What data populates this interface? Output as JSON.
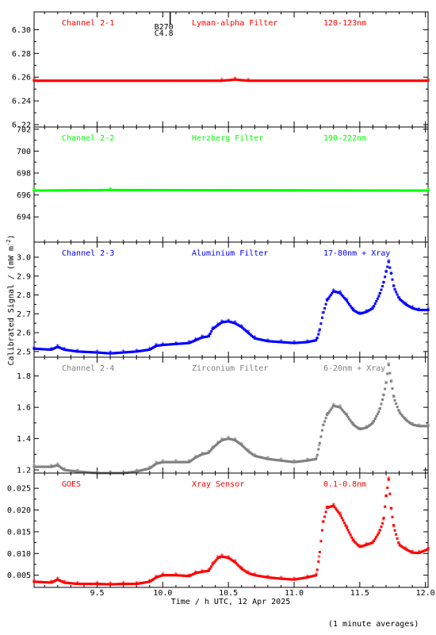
{
  "footnote": "(1 minute averages)",
  "xlabel": "Time / h UTC, 12 Apr 2025",
  "ylabel": "Calibrated Signal / (mW m",
  "ylabel_sup": "-2",
  "ylabel_end": ")",
  "x_ticks": [
    9.5,
    10.0,
    10.5,
    11.0,
    11.5,
    12.0
  ],
  "x_tick_labels": [
    "9.5",
    "10.0",
    "10.5",
    "11.0",
    "11.5",
    "12.0"
  ],
  "flare_marker": {
    "time": 10.02,
    "label_top": "B270",
    "label_bottom": "C4.8"
  },
  "chart_data": [
    {
      "type": "scatter",
      "labels": [
        "Channel 2-1",
        "Lyman-alpha Filter",
        "120-123nm"
      ],
      "color": "#ff0000",
      "xlim": [
        9.02,
        12.02
      ],
      "ylim": [
        6.218,
        6.315
      ],
      "yticks": [
        6.22,
        6.24,
        6.26,
        6.28,
        6.3
      ],
      "ytick_labels": [
        "6.22",
        "6.24",
        "6.26",
        "6.28",
        "6.30"
      ],
      "x": [
        9.02,
        10.45,
        10.55,
        10.65,
        12.02
      ],
      "y": [
        6.257,
        6.257,
        6.258,
        6.257,
        6.257
      ]
    },
    {
      "type": "scatter",
      "labels": [
        "Channel 2-2",
        "Herzberg Filter",
        "190-222nm"
      ],
      "color": "#00ff00",
      "xlim": [
        9.02,
        12.02
      ],
      "ylim": [
        691.7,
        702.2
      ],
      "yticks": [
        694,
        696,
        698,
        700,
        702
      ],
      "ytick_labels": [
        "694",
        "696",
        "698",
        "700",
        "702"
      ],
      "x": [
        9.02,
        9.6,
        12.02
      ],
      "y": [
        696.4,
        696.45,
        696.4
      ]
    },
    {
      "type": "scatter",
      "labels": [
        "Channel 2-3",
        "Aluminium Filter",
        "17-80nm + Xray"
      ],
      "color": "#0000ff",
      "xlim": [
        9.02,
        12.02
      ],
      "ylim": [
        2.47,
        3.08
      ],
      "yticks": [
        2.5,
        2.6,
        2.7,
        2.8,
        2.9,
        3.0
      ],
      "ytick_labels": [
        "2.5",
        "2.6",
        "2.7",
        "2.8",
        "2.9",
        "3.0"
      ],
      "x": [
        9.02,
        9.15,
        9.2,
        9.25,
        9.35,
        9.5,
        9.6,
        9.7,
        9.8,
        9.9,
        9.95,
        10.0,
        10.1,
        10.2,
        10.25,
        10.3,
        10.35,
        10.38,
        10.42,
        10.45,
        10.5,
        10.55,
        10.6,
        10.65,
        10.7,
        10.8,
        10.9,
        11.0,
        11.1,
        11.17,
        11.19,
        11.22,
        11.25,
        11.3,
        11.35,
        11.4,
        11.45,
        11.5,
        11.55,
        11.6,
        11.65,
        11.68,
        11.7,
        11.72,
        11.74,
        11.76,
        11.8,
        11.85,
        11.9,
        11.95,
        12.02
      ],
      "y": [
        2.515,
        2.51,
        2.525,
        2.51,
        2.5,
        2.495,
        2.49,
        2.495,
        2.5,
        2.51,
        2.53,
        2.535,
        2.54,
        2.545,
        2.56,
        2.575,
        2.58,
        2.62,
        2.64,
        2.655,
        2.66,
        2.65,
        2.63,
        2.6,
        2.57,
        2.555,
        2.55,
        2.545,
        2.55,
        2.56,
        2.6,
        2.7,
        2.77,
        2.82,
        2.81,
        2.77,
        2.72,
        2.7,
        2.71,
        2.73,
        2.8,
        2.86,
        2.92,
        2.975,
        2.91,
        2.84,
        2.78,
        2.75,
        2.73,
        2.72,
        2.72
      ]
    },
    {
      "type": "scatter",
      "labels": [
        "Channel 2-4",
        "Zirconium Filter",
        "6-20nm + Xray"
      ],
      "color": "#808080",
      "xlim": [
        9.02,
        12.02
      ],
      "ylim": [
        1.18,
        1.92
      ],
      "yticks": [
        1.2,
        1.4,
        1.6,
        1.8
      ],
      "ytick_labels": [
        "1.2",
        "1.4",
        "1.6",
        "1.8"
      ],
      "x": [
        9.02,
        9.15,
        9.2,
        9.25,
        9.35,
        9.5,
        9.6,
        9.7,
        9.8,
        9.9,
        9.95,
        10.0,
        10.1,
        10.2,
        10.25,
        10.3,
        10.35,
        10.38,
        10.42,
        10.45,
        10.5,
        10.55,
        10.6,
        10.65,
        10.7,
        10.8,
        10.9,
        11.0,
        11.1,
        11.17,
        11.19,
        11.22,
        11.25,
        11.3,
        11.35,
        11.4,
        11.45,
        11.5,
        11.55,
        11.6,
        11.65,
        11.68,
        11.7,
        11.72,
        11.74,
        11.76,
        11.8,
        11.85,
        11.9,
        11.95,
        12.02
      ],
      "y": [
        1.22,
        1.22,
        1.23,
        1.2,
        1.19,
        1.18,
        1.18,
        1.18,
        1.19,
        1.21,
        1.24,
        1.25,
        1.25,
        1.25,
        1.28,
        1.3,
        1.31,
        1.34,
        1.37,
        1.39,
        1.4,
        1.39,
        1.36,
        1.32,
        1.29,
        1.27,
        1.26,
        1.25,
        1.26,
        1.27,
        1.35,
        1.48,
        1.55,
        1.61,
        1.6,
        1.55,
        1.49,
        1.46,
        1.47,
        1.5,
        1.58,
        1.67,
        1.75,
        1.87,
        1.76,
        1.66,
        1.57,
        1.52,
        1.49,
        1.48,
        1.48
      ]
    },
    {
      "type": "scatter",
      "labels": [
        "GOES",
        "Xray Sensor",
        "0.1-0.8nm"
      ],
      "color": "#ff0000",
      "xlim": [
        9.02,
        12.02
      ],
      "ylim": [
        0.0022,
        0.0285
      ],
      "yticks": [
        0.005,
        0.01,
        0.015,
        0.02,
        0.025
      ],
      "ytick_labels": [
        "0.005",
        "0.010",
        "0.015",
        "0.020",
        "0.025"
      ],
      "x": [
        9.02,
        9.15,
        9.2,
        9.25,
        9.35,
        9.5,
        9.6,
        9.7,
        9.8,
        9.9,
        9.95,
        10.0,
        10.1,
        10.2,
        10.25,
        10.3,
        10.35,
        10.38,
        10.42,
        10.45,
        10.5,
        10.55,
        10.6,
        10.65,
        10.7,
        10.8,
        10.9,
        11.0,
        11.1,
        11.17,
        11.19,
        11.22,
        11.25,
        11.3,
        11.35,
        11.4,
        11.45,
        11.5,
        11.55,
        11.6,
        11.65,
        11.68,
        11.7,
        11.72,
        11.74,
        11.76,
        11.8,
        11.85,
        11.9,
        11.95,
        12.02
      ],
      "y": [
        0.0035,
        0.0033,
        0.004,
        0.0033,
        0.003,
        0.003,
        0.0029,
        0.003,
        0.003,
        0.0035,
        0.0045,
        0.005,
        0.005,
        0.0048,
        0.0055,
        0.0058,
        0.006,
        0.0075,
        0.009,
        0.0093,
        0.009,
        0.008,
        0.0065,
        0.0055,
        0.005,
        0.0045,
        0.0042,
        0.004,
        0.0045,
        0.005,
        0.009,
        0.017,
        0.0205,
        0.021,
        0.019,
        0.016,
        0.013,
        0.0115,
        0.012,
        0.0125,
        0.015,
        0.0175,
        0.023,
        0.027,
        0.02,
        0.016,
        0.012,
        0.011,
        0.0102,
        0.0101,
        0.011
      ]
    }
  ]
}
